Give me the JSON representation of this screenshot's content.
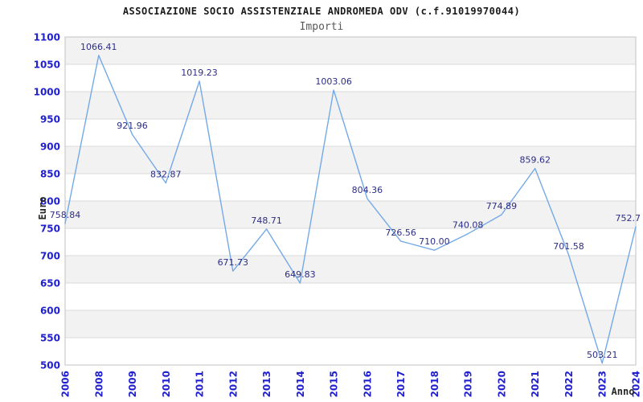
{
  "header": {
    "title": "ASSOCIAZIONE SOCIO ASSISTENZIALE ANDROMEDA ODV (c.f.91019970044)",
    "subtitle": "Importi"
  },
  "chart_data": {
    "type": "line",
    "title": "ASSOCIAZIONE SOCIO ASSISTENZIALE ANDROMEDA ODV (c.f.91019970044)",
    "subtitle": "Importi",
    "xlabel": "Anno",
    "ylabel": "Euro",
    "categories": [
      "2006",
      "2008",
      "2009",
      "2010",
      "2011",
      "2012",
      "2013",
      "2014",
      "2015",
      "2016",
      "2017",
      "2018",
      "2019",
      "2020",
      "2021",
      "2022",
      "2023",
      "2024"
    ],
    "values": [
      758.84,
      1066.41,
      921.96,
      832.87,
      1019.23,
      671.73,
      748.71,
      649.83,
      1003.06,
      804.36,
      726.56,
      710.0,
      740.08,
      774.89,
      859.62,
      701.58,
      503.21,
      752.7
    ],
    "value_labels": [
      "758.84",
      "1066.41",
      "921.96",
      "832.87",
      "1019.23",
      "671.73",
      "748.71",
      "649.83",
      "1003.06",
      "804.36",
      "726.56",
      "710.00",
      "740.08",
      "774.89",
      "859.62",
      "701.58",
      "503.21",
      "752.7"
    ],
    "ylim": [
      500,
      1100
    ],
    "ytick_step": 50,
    "grid": "horizontal-bands-alternating",
    "legend": "none",
    "colors": {
      "line": "#74a9e7",
      "tick_label": "#2020d0",
      "data_label": "#2d2d86",
      "band_gray": "#f2f2f2",
      "band_white": "#ffffff",
      "gridline": "#d9d9d9",
      "plot_border": "#cccccc",
      "title": "#1a1a1a",
      "subtitle": "#595959",
      "axis_title": "#262626"
    }
  }
}
